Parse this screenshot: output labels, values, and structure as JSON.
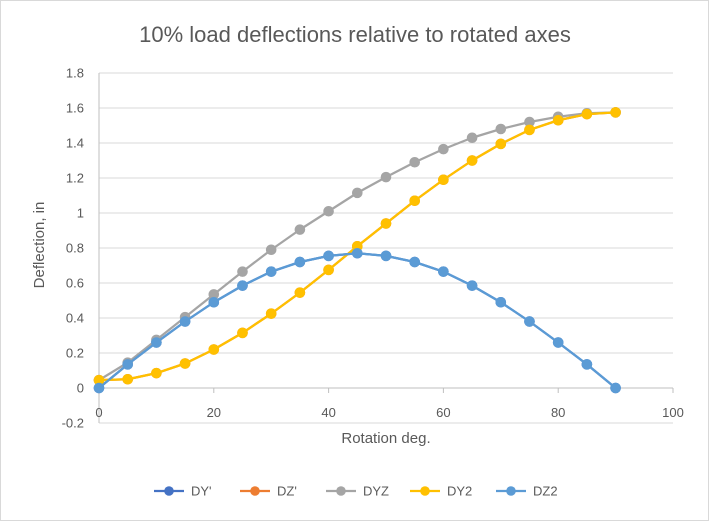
{
  "chart_data": {
    "type": "line",
    "title": "10% load deflections relative to rotated axes",
    "xlabel": "Rotation deg.",
    "ylabel": "Deflection, in",
    "xlim": [
      0,
      100
    ],
    "ylim": [
      -0.2,
      1.8
    ],
    "x_ticks": [
      0,
      20,
      40,
      60,
      80,
      100
    ],
    "x_tick_labels": [
      "0",
      "20",
      "40",
      "60",
      "80",
      "100"
    ],
    "y_ticks": [
      -0.2,
      0,
      0.2,
      0.4,
      0.6,
      0.8,
      1,
      1.2,
      1.4,
      1.6,
      1.8
    ],
    "y_tick_labels": [
      "-0.2",
      "0",
      "0.2",
      "0.4",
      "0.6",
      "0.8",
      "1",
      "1.2",
      "1.4",
      "1.6",
      "1.8"
    ],
    "grid": "horizontal",
    "legend_position": "bottom",
    "x": [
      0,
      5,
      10,
      15,
      20,
      25,
      30,
      35,
      40,
      45,
      50,
      55,
      60,
      65,
      70,
      75,
      80,
      85,
      90
    ],
    "series": [
      {
        "name": "DY'",
        "color": "#4472C4",
        "values": [
          0,
          0.135,
          0.26,
          0.38,
          0.49,
          0.585,
          0.665,
          0.72,
          0.755,
          0.77,
          0.755,
          0.72,
          0.665,
          0.585,
          0.49,
          0.38,
          0.26,
          0.135,
          0
        ]
      },
      {
        "name": "DZ'",
        "color": "#ED7D31",
        "values": [
          0.045,
          0.05,
          0.085,
          0.14,
          0.22,
          0.315,
          0.425,
          0.545,
          0.675,
          0.81,
          0.94,
          1.07,
          1.19,
          1.3,
          1.395,
          1.475,
          1.53,
          1.565,
          1.575
        ]
      },
      {
        "name": "DYZ",
        "color": "#A5A5A5",
        "values": [
          0.045,
          0.145,
          0.275,
          0.405,
          0.535,
          0.665,
          0.79,
          0.905,
          1.01,
          1.115,
          1.205,
          1.29,
          1.365,
          1.43,
          1.48,
          1.52,
          1.55,
          1.57,
          1.575
        ]
      },
      {
        "name": "DY2",
        "color": "#FFC000",
        "values": [
          0.045,
          0.05,
          0.085,
          0.14,
          0.22,
          0.315,
          0.425,
          0.545,
          0.675,
          0.81,
          0.94,
          1.07,
          1.19,
          1.3,
          1.395,
          1.475,
          1.53,
          1.565,
          1.575
        ]
      },
      {
        "name": "DZ2",
        "color": "#5B9BD5",
        "values": [
          0,
          0.135,
          0.26,
          0.38,
          0.49,
          0.585,
          0.665,
          0.72,
          0.755,
          0.77,
          0.755,
          0.72,
          0.665,
          0.585,
          0.49,
          0.38,
          0.26,
          0.135,
          0
        ]
      }
    ]
  }
}
